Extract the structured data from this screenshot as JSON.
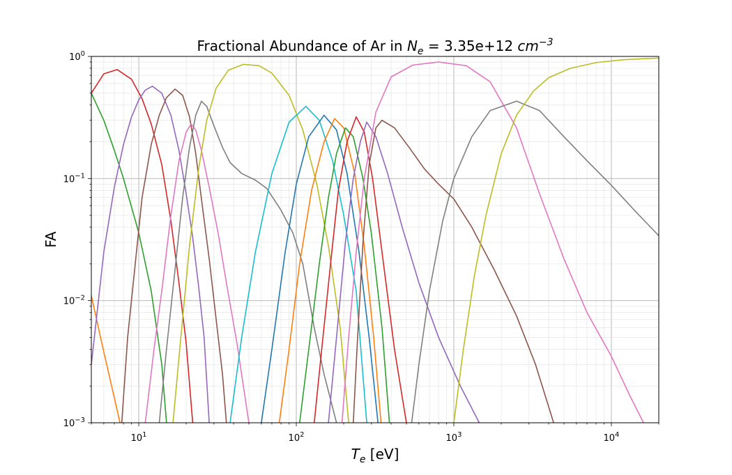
{
  "chart_data": {
    "type": "line",
    "title": "Fractional Abundance of Ar in N_e = 3.35e+12 cm^-3",
    "title_parts": {
      "prefix": "Fractional Abundance of Ar in ",
      "var": "N",
      "var_sub": "e",
      "middle": "  = 3.35e+12 ",
      "unit": "cm",
      "unit_sup": "−3"
    },
    "xlabel": "T_e [eV]",
    "xlabel_parts": {
      "var": "T",
      "sub": "e",
      "rest": " [eV]"
    },
    "ylabel": "FA",
    "xscale": "log",
    "yscale": "log",
    "xlim": [
      5,
      20000
    ],
    "ylim": [
      0.001,
      1
    ],
    "grid": true,
    "legend": "none",
    "x_ticks": [
      {
        "value": 10,
        "base": "10",
        "exp": "1"
      },
      {
        "value": 100,
        "base": "10",
        "exp": "2"
      },
      {
        "value": 1000,
        "base": "10",
        "exp": "3"
      },
      {
        "value": 10000,
        "base": "10",
        "exp": "4"
      }
    ],
    "y_ticks": [
      {
        "value": 0.001,
        "base": "10",
        "exp": "−3"
      },
      {
        "value": 0.01,
        "base": "10",
        "exp": "−2"
      },
      {
        "value": 0.1,
        "base": "10",
        "exp": "−1"
      },
      {
        "value": 1,
        "base": "10",
        "exp": "0"
      }
    ],
    "series": [
      {
        "color": "#ff7f0e",
        "points": [
          [
            5,
            0.011
          ],
          [
            6,
            0.0038
          ],
          [
            7,
            0.0016
          ],
          [
            7.6,
            0.001
          ]
        ]
      },
      {
        "color": "#2ca02c",
        "points": [
          [
            5,
            0.5
          ],
          [
            6,
            0.3
          ],
          [
            7,
            0.17
          ],
          [
            8,
            0.1
          ],
          [
            10,
            0.036
          ],
          [
            12,
            0.012
          ],
          [
            14,
            0.003
          ],
          [
            15,
            0.001
          ]
        ]
      },
      {
        "color": "#d62728",
        "points": [
          [
            5,
            0.5
          ],
          [
            6,
            0.72
          ],
          [
            7.3,
            0.78
          ],
          [
            9,
            0.65
          ],
          [
            10.5,
            0.45
          ],
          [
            12,
            0.28
          ],
          [
            14,
            0.13
          ],
          [
            16,
            0.045
          ],
          [
            18,
            0.014
          ],
          [
            20,
            0.0045
          ],
          [
            22,
            0.001
          ]
        ]
      },
      {
        "color": "#9467bd",
        "points": [
          [
            5,
            0.003
          ],
          [
            6,
            0.025
          ],
          [
            7,
            0.085
          ],
          [
            8,
            0.19
          ],
          [
            9,
            0.32
          ],
          [
            10,
            0.44
          ],
          [
            11,
            0.53
          ],
          [
            12.2,
            0.57
          ],
          [
            14,
            0.5
          ],
          [
            16,
            0.33
          ],
          [
            18,
            0.17
          ],
          [
            20,
            0.075
          ],
          [
            22,
            0.033
          ],
          [
            24,
            0.013
          ],
          [
            26,
            0.005
          ],
          [
            28,
            0.001
          ]
        ]
      },
      {
        "color": "#8c564b",
        "points": [
          [
            7.8,
            0.001
          ],
          [
            8.5,
            0.005
          ],
          [
            9.5,
            0.02
          ],
          [
            10.5,
            0.07
          ],
          [
            12,
            0.19
          ],
          [
            13.5,
            0.33
          ],
          [
            15,
            0.46
          ],
          [
            17,
            0.54
          ],
          [
            19,
            0.48
          ],
          [
            21,
            0.32
          ],
          [
            23,
            0.16
          ],
          [
            25,
            0.068
          ],
          [
            28,
            0.022
          ],
          [
            31,
            0.007
          ],
          [
            34,
            0.0025
          ],
          [
            36,
            0.001
          ]
        ]
      },
      {
        "color": "#e377c2",
        "points": [
          [
            11,
            0.001
          ],
          [
            12.5,
            0.004
          ],
          [
            14,
            0.012
          ],
          [
            16,
            0.05
          ],
          [
            18,
            0.14
          ],
          [
            20,
            0.24
          ],
          [
            21.5,
            0.28
          ],
          [
            23,
            0.25
          ],
          [
            25,
            0.17
          ],
          [
            28,
            0.085
          ],
          [
            32,
            0.035
          ],
          [
            36,
            0.014
          ],
          [
            42,
            0.0045
          ],
          [
            50,
            0.001
          ]
        ]
      },
      {
        "color": "#7f7f7f",
        "points": [
          [
            13.5,
            0.001
          ],
          [
            15,
            0.004
          ],
          [
            17,
            0.018
          ],
          [
            19,
            0.07
          ],
          [
            21,
            0.18
          ],
          [
            23,
            0.33
          ],
          [
            25,
            0.43
          ],
          [
            27,
            0.39
          ],
          [
            30,
            0.27
          ],
          [
            34,
            0.18
          ],
          [
            38,
            0.135
          ],
          [
            45,
            0.11
          ],
          [
            55,
            0.097
          ],
          [
            65,
            0.083
          ],
          [
            80,
            0.055
          ],
          [
            95,
            0.036
          ],
          [
            110,
            0.02
          ],
          [
            130,
            0.006
          ],
          [
            150,
            0.0025
          ],
          [
            180,
            0.001
          ]
        ]
      },
      {
        "color": "#bcbd22",
        "points": [
          [
            16.5,
            0.001
          ],
          [
            18.5,
            0.005
          ],
          [
            21,
            0.028
          ],
          [
            24,
            0.12
          ],
          [
            27,
            0.3
          ],
          [
            31,
            0.55
          ],
          [
            37,
            0.77
          ],
          [
            46,
            0.86
          ],
          [
            58,
            0.84
          ],
          [
            70,
            0.73
          ],
          [
            90,
            0.48
          ],
          [
            110,
            0.25
          ],
          [
            135,
            0.09
          ],
          [
            160,
            0.028
          ],
          [
            190,
            0.006
          ],
          [
            215,
            0.001
          ]
        ]
      },
      {
        "color": "#17becf",
        "points": [
          [
            38,
            0.001
          ],
          [
            45,
            0.005
          ],
          [
            55,
            0.025
          ],
          [
            70,
            0.11
          ],
          [
            90,
            0.29
          ],
          [
            115,
            0.39
          ],
          [
            140,
            0.3
          ],
          [
            170,
            0.14
          ],
          [
            200,
            0.05
          ],
          [
            240,
            0.012
          ],
          [
            280,
            0.001
          ]
        ]
      },
      {
        "color": "#1f77b4",
        "points": [
          [
            60,
            0.001
          ],
          [
            70,
            0.004
          ],
          [
            85,
            0.025
          ],
          [
            100,
            0.09
          ],
          [
            120,
            0.22
          ],
          [
            150,
            0.33
          ],
          [
            180,
            0.25
          ],
          [
            210,
            0.11
          ],
          [
            250,
            0.025
          ],
          [
            290,
            0.005
          ],
          [
            330,
            0.001
          ]
        ]
      },
      {
        "color": "#ff7f0e",
        "points": [
          [
            78,
            0.001
          ],
          [
            90,
            0.004
          ],
          [
            105,
            0.02
          ],
          [
            125,
            0.08
          ],
          [
            150,
            0.2
          ],
          [
            175,
            0.31
          ],
          [
            200,
            0.26
          ],
          [
            235,
            0.11
          ],
          [
            270,
            0.028
          ],
          [
            310,
            0.005
          ],
          [
            345,
            0.001
          ]
        ]
      },
      {
        "color": "#2ca02c",
        "points": [
          [
            105,
            0.001
          ],
          [
            120,
            0.004
          ],
          [
            140,
            0.02
          ],
          [
            160,
            0.07
          ],
          [
            180,
            0.16
          ],
          [
            205,
            0.26
          ],
          [
            230,
            0.22
          ],
          [
            265,
            0.1
          ],
          [
            300,
            0.035
          ],
          [
            350,
            0.006
          ],
          [
            390,
            0.001
          ]
        ]
      },
      {
        "color": "#d62728",
        "points": [
          [
            130,
            0.001
          ],
          [
            145,
            0.004
          ],
          [
            165,
            0.02
          ],
          [
            185,
            0.08
          ],
          [
            210,
            0.2
          ],
          [
            240,
            0.32
          ],
          [
            270,
            0.24
          ],
          [
            305,
            0.1
          ],
          [
            350,
            0.025
          ],
          [
            420,
            0.004
          ],
          [
            500,
            0.001
          ]
        ]
      },
      {
        "color": "#9467bd",
        "points": [
          [
            160,
            0.001
          ],
          [
            180,
            0.005
          ],
          [
            205,
            0.03
          ],
          [
            230,
            0.1
          ],
          [
            255,
            0.2
          ],
          [
            280,
            0.29
          ],
          [
            320,
            0.22
          ],
          [
            380,
            0.11
          ],
          [
            470,
            0.04
          ],
          [
            600,
            0.014
          ],
          [
            800,
            0.005
          ],
          [
            1100,
            0.002
          ],
          [
            1450,
            0.001
          ]
        ]
      },
      {
        "color": "#e377c2",
        "points": [
          [
            195,
            0.001
          ],
          [
            215,
            0.005
          ],
          [
            240,
            0.025
          ],
          [
            270,
            0.1
          ],
          [
            320,
            0.35
          ],
          [
            400,
            0.68
          ],
          [
            550,
            0.85
          ],
          [
            800,
            0.9
          ],
          [
            1200,
            0.84
          ],
          [
            1700,
            0.62
          ],
          [
            2500,
            0.26
          ],
          [
            3500,
            0.075
          ],
          [
            5000,
            0.022
          ],
          [
            7000,
            0.008
          ],
          [
            10000,
            0.0035
          ],
          [
            13000,
            0.0017
          ],
          [
            16000,
            0.001
          ]
        ]
      },
      {
        "color": "#8c564b",
        "points": [
          [
            230,
            0.001
          ],
          [
            245,
            0.005
          ],
          [
            265,
            0.03
          ],
          [
            290,
            0.13
          ],
          [
            320,
            0.26
          ],
          [
            350,
            0.3
          ],
          [
            420,
            0.26
          ],
          [
            520,
            0.18
          ],
          [
            650,
            0.12
          ],
          [
            800,
            0.09
          ],
          [
            1000,
            0.068
          ],
          [
            1300,
            0.04
          ],
          [
            1800,
            0.018
          ],
          [
            2500,
            0.0075
          ],
          [
            3300,
            0.003
          ],
          [
            4300,
            0.001
          ]
        ]
      },
      {
        "color": "#7f7f7f",
        "points": [
          [
            540,
            0.001
          ],
          [
            600,
            0.003
          ],
          [
            700,
            0.012
          ],
          [
            850,
            0.045
          ],
          [
            1000,
            0.1
          ],
          [
            1300,
            0.22
          ],
          [
            1700,
            0.36
          ],
          [
            2500,
            0.43
          ],
          [
            3500,
            0.36
          ],
          [
            5000,
            0.22
          ],
          [
            7000,
            0.14
          ],
          [
            10000,
            0.088
          ],
          [
            14000,
            0.055
          ],
          [
            20000,
            0.034
          ]
        ]
      },
      {
        "color": "#bcbd22",
        "points": [
          [
            1000,
            0.001
          ],
          [
            1150,
            0.004
          ],
          [
            1350,
            0.016
          ],
          [
            1600,
            0.05
          ],
          [
            2000,
            0.16
          ],
          [
            2500,
            0.33
          ],
          [
            3200,
            0.52
          ],
          [
            4000,
            0.67
          ],
          [
            5500,
            0.8
          ],
          [
            8000,
            0.89
          ],
          [
            12000,
            0.94
          ],
          [
            20000,
            0.97
          ]
        ]
      }
    ]
  }
}
